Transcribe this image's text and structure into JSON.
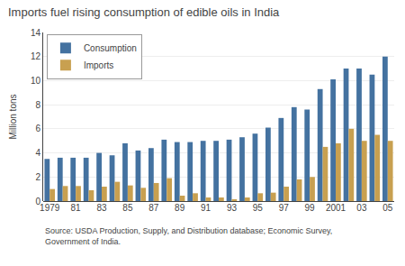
{
  "chart_data": {
    "type": "bar",
    "title": "Imports fuel rising consumption of edible oils in India",
    "ylabel": "Million tons",
    "annotations": [
      "Source: USDA Production, Supply, and Distribution database; Economic Survey,\nGovernment of India."
    ],
    "categories": [
      "1979",
      null,
      "81",
      null,
      "83",
      null,
      "85",
      null,
      "87",
      null,
      "89",
      null,
      "91",
      null,
      "93",
      null,
      "95",
      null,
      "97",
      null,
      "99",
      null,
      "2001",
      null,
      "03",
      null,
      "05"
    ],
    "series": [
      {
        "name": "Consumption",
        "color": "#4472a0",
        "values": [
          3.5,
          3.6,
          3.6,
          3.6,
          4.0,
          3.8,
          4.8,
          4.2,
          4.4,
          5.1,
          4.9,
          4.9,
          5.0,
          5.0,
          5.1,
          5.3,
          5.6,
          6.1,
          6.9,
          7.8,
          7.6,
          9.3,
          10.1,
          11.0,
          11.0,
          10.5,
          12.0
        ]
      },
      {
        "name": "Imports",
        "color": "#c8a050",
        "values": [
          1.0,
          1.25,
          1.25,
          0.9,
          1.2,
          1.6,
          1.3,
          1.1,
          1.5,
          1.9,
          0.45,
          0.65,
          0.3,
          0.3,
          0.1,
          0.3,
          0.65,
          0.7,
          1.2,
          1.8,
          2.0,
          4.5,
          4.8,
          6.0,
          5.0,
          5.5,
          5.0
        ]
      }
    ],
    "ylim": [
      0,
      14
    ],
    "yticks": [
      0,
      2,
      4,
      6,
      8,
      10,
      12,
      14
    ],
    "grid": true,
    "legend": "upper left"
  }
}
